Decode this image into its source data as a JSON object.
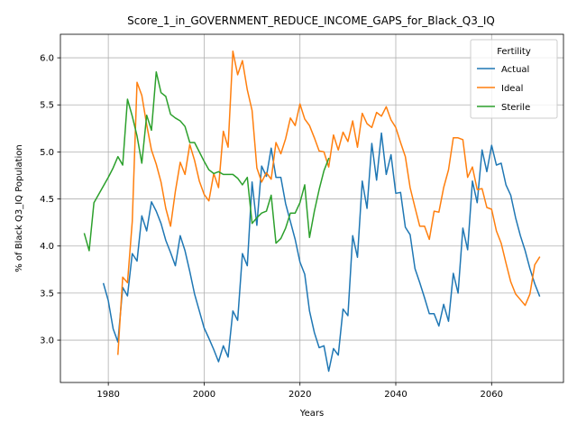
{
  "chart_data": {
    "type": "line",
    "title": "Score_1_in_GOVERNMENT_REDUCE_INCOME_GAPS_for_Black_Q3_IQ",
    "xlabel": "Years",
    "ylabel": "% of Black Q3_IQ Population",
    "xlim": [
      1970,
      2075
    ],
    "ylim": [
      2.55,
      6.25
    ],
    "x_ticks": [
      1980,
      2000,
      2020,
      2040,
      2060
    ],
    "y_ticks": [
      3.0,
      3.5,
      4.0,
      4.5,
      5.0,
      5.5,
      6.0
    ],
    "x_tick_labels": [
      "1980",
      "2000",
      "2020",
      "2040",
      "2060"
    ],
    "y_tick_labels": [
      "3.0",
      "3.5",
      "4.0",
      "4.5",
      "5.0",
      "5.5",
      "6.0"
    ],
    "grid": true,
    "legend": {
      "title": "Fertility",
      "placement": "top-right"
    },
    "series": [
      {
        "name": "Actual",
        "color": "#1f77b4",
        "x": [
          1979,
          1980,
          1981,
          1982,
          1983,
          1984,
          1985,
          1986,
          1987,
          1988,
          1989,
          1990,
          1991,
          1992,
          1993,
          1994,
          1995,
          1996,
          1997,
          1998,
          1999,
          2000,
          2001,
          2002,
          2003,
          2004,
          2005,
          2006,
          2007,
          2008,
          2009,
          2010,
          2011,
          2012,
          2013,
          2014,
          2015,
          2016,
          2017,
          2018,
          2019,
          2020,
          2021,
          2022,
          2023,
          2024,
          2025,
          2026,
          2027,
          2028,
          2029,
          2030,
          2031,
          2032,
          2033,
          2034,
          2035,
          2036,
          2037,
          2038,
          2039,
          2040,
          2041,
          2042,
          2043,
          2044,
          2045,
          2046,
          2047,
          2048,
          2049,
          2050,
          2051,
          2052,
          2053,
          2054,
          2055,
          2056,
          2057,
          2058,
          2059,
          2060,
          2061,
          2062,
          2063,
          2064,
          2065,
          2066,
          2067,
          2068,
          2069,
          2070
        ],
        "values": [
          3.6,
          3.42,
          3.12,
          2.98,
          3.56,
          3.47,
          3.92,
          3.84,
          4.32,
          4.16,
          4.47,
          4.37,
          4.24,
          4.06,
          3.93,
          3.79,
          4.11,
          3.95,
          3.73,
          3.49,
          3.31,
          3.13,
          3.02,
          2.9,
          2.77,
          2.94,
          2.82,
          3.31,
          3.21,
          3.92,
          3.79,
          4.68,
          4.22,
          4.85,
          4.74,
          5.04,
          4.73,
          4.73,
          4.45,
          4.26,
          4.07,
          3.83,
          3.7,
          3.31,
          3.08,
          2.92,
          2.94,
          2.67,
          2.91,
          2.84,
          3.33,
          3.26,
          4.11,
          3.88,
          4.69,
          4.4,
          5.09,
          4.7,
          5.2,
          4.76,
          4.97,
          4.56,
          4.57,
          4.2,
          4.12,
          3.76,
          3.61,
          3.45,
          3.28,
          3.28,
          3.15,
          3.38,
          3.2,
          3.71,
          3.5,
          4.19,
          3.96,
          4.69,
          4.46,
          5.02,
          4.79,
          5.07,
          4.86,
          4.88,
          4.65,
          4.54,
          4.3,
          4.11,
          3.95,
          3.76,
          3.6,
          3.47
        ]
      },
      {
        "name": "Ideal",
        "color": "#ff7f0e",
        "x": [
          1982,
          1983,
          1984,
          1985,
          1986,
          1987,
          1988,
          1989,
          1990,
          1991,
          1992,
          1993,
          1994,
          1995,
          1996,
          1997,
          1998,
          1999,
          2000,
          2001,
          2002,
          2003,
          2004,
          2005,
          2006,
          2007,
          2008,
          2009,
          2010,
          2011,
          2012,
          2013,
          2014,
          2015,
          2016,
          2017,
          2018,
          2019,
          2020,
          2021,
          2022,
          2023,
          2024,
          2025,
          2026,
          2027,
          2028,
          2029,
          2030,
          2031,
          2032,
          2033,
          2034,
          2035,
          2036,
          2037,
          2038,
          2039,
          2040,
          2041,
          2042,
          2043,
          2044,
          2045,
          2046,
          2047,
          2048,
          2049,
          2050,
          2051,
          2052,
          2053,
          2054,
          2055,
          2056,
          2057,
          2058,
          2059,
          2060,
          2061,
          2062,
          2063,
          2064,
          2065,
          2066,
          2067,
          2068,
          2069,
          2070
        ],
        "values": [
          2.85,
          3.67,
          3.61,
          4.26,
          5.74,
          5.6,
          5.29,
          5.02,
          4.87,
          4.68,
          4.4,
          4.21,
          4.58,
          4.89,
          4.76,
          5.08,
          4.91,
          4.69,
          4.55,
          4.48,
          4.77,
          4.62,
          5.22,
          5.05,
          6.07,
          5.82,
          5.97,
          5.66,
          5.44,
          4.83,
          4.68,
          4.78,
          4.71,
          5.1,
          4.98,
          5.14,
          5.36,
          5.28,
          5.51,
          5.35,
          5.28,
          5.15,
          5.01,
          5.0,
          4.84,
          5.18,
          5.02,
          5.21,
          5.11,
          5.33,
          5.05,
          5.41,
          5.3,
          5.26,
          5.42,
          5.38,
          5.48,
          5.34,
          5.26,
          5.1,
          4.95,
          4.62,
          4.41,
          4.21,
          4.21,
          4.07,
          4.37,
          4.36,
          4.62,
          4.81,
          5.15,
          5.15,
          5.13,
          4.73,
          4.84,
          4.6,
          4.61,
          4.41,
          4.39,
          4.16,
          4.03,
          3.82,
          3.62,
          3.49,
          3.43,
          3.37,
          3.49,
          3.8,
          3.88
        ]
      },
      {
        "name": "Sterile",
        "color": "#2ca02c",
        "x": [
          1975,
          1976,
          1977,
          1978,
          1979,
          1980,
          1981,
          1982,
          1983,
          1984,
          1985,
          1986,
          1987,
          1988,
          1989,
          1990,
          1991,
          1992,
          1993,
          1994,
          1995,
          1996,
          1997,
          1998,
          1999,
          2000,
          2001,
          2002,
          2003,
          2004,
          2005,
          2006,
          2007,
          2008,
          2009,
          2010,
          2011,
          2012,
          2013,
          2014,
          2015,
          2016,
          2017,
          2018,
          2019,
          2020,
          2021,
          2022,
          2023,
          2024,
          2025,
          2026
        ],
        "values": [
          4.13,
          3.95,
          4.46,
          4.55,
          4.64,
          4.73,
          4.83,
          4.95,
          4.86,
          5.56,
          5.38,
          5.17,
          4.88,
          5.39,
          5.23,
          5.85,
          5.63,
          5.59,
          5.4,
          5.36,
          5.33,
          5.27,
          5.1,
          5.1,
          5.0,
          4.9,
          4.81,
          4.77,
          4.79,
          4.76,
          4.76,
          4.76,
          4.72,
          4.65,
          4.73,
          4.24,
          4.3,
          4.35,
          4.37,
          4.54,
          4.03,
          4.08,
          4.19,
          4.35,
          4.35,
          4.46,
          4.65,
          4.09,
          4.37,
          4.6,
          4.8,
          4.93
        ]
      }
    ]
  }
}
